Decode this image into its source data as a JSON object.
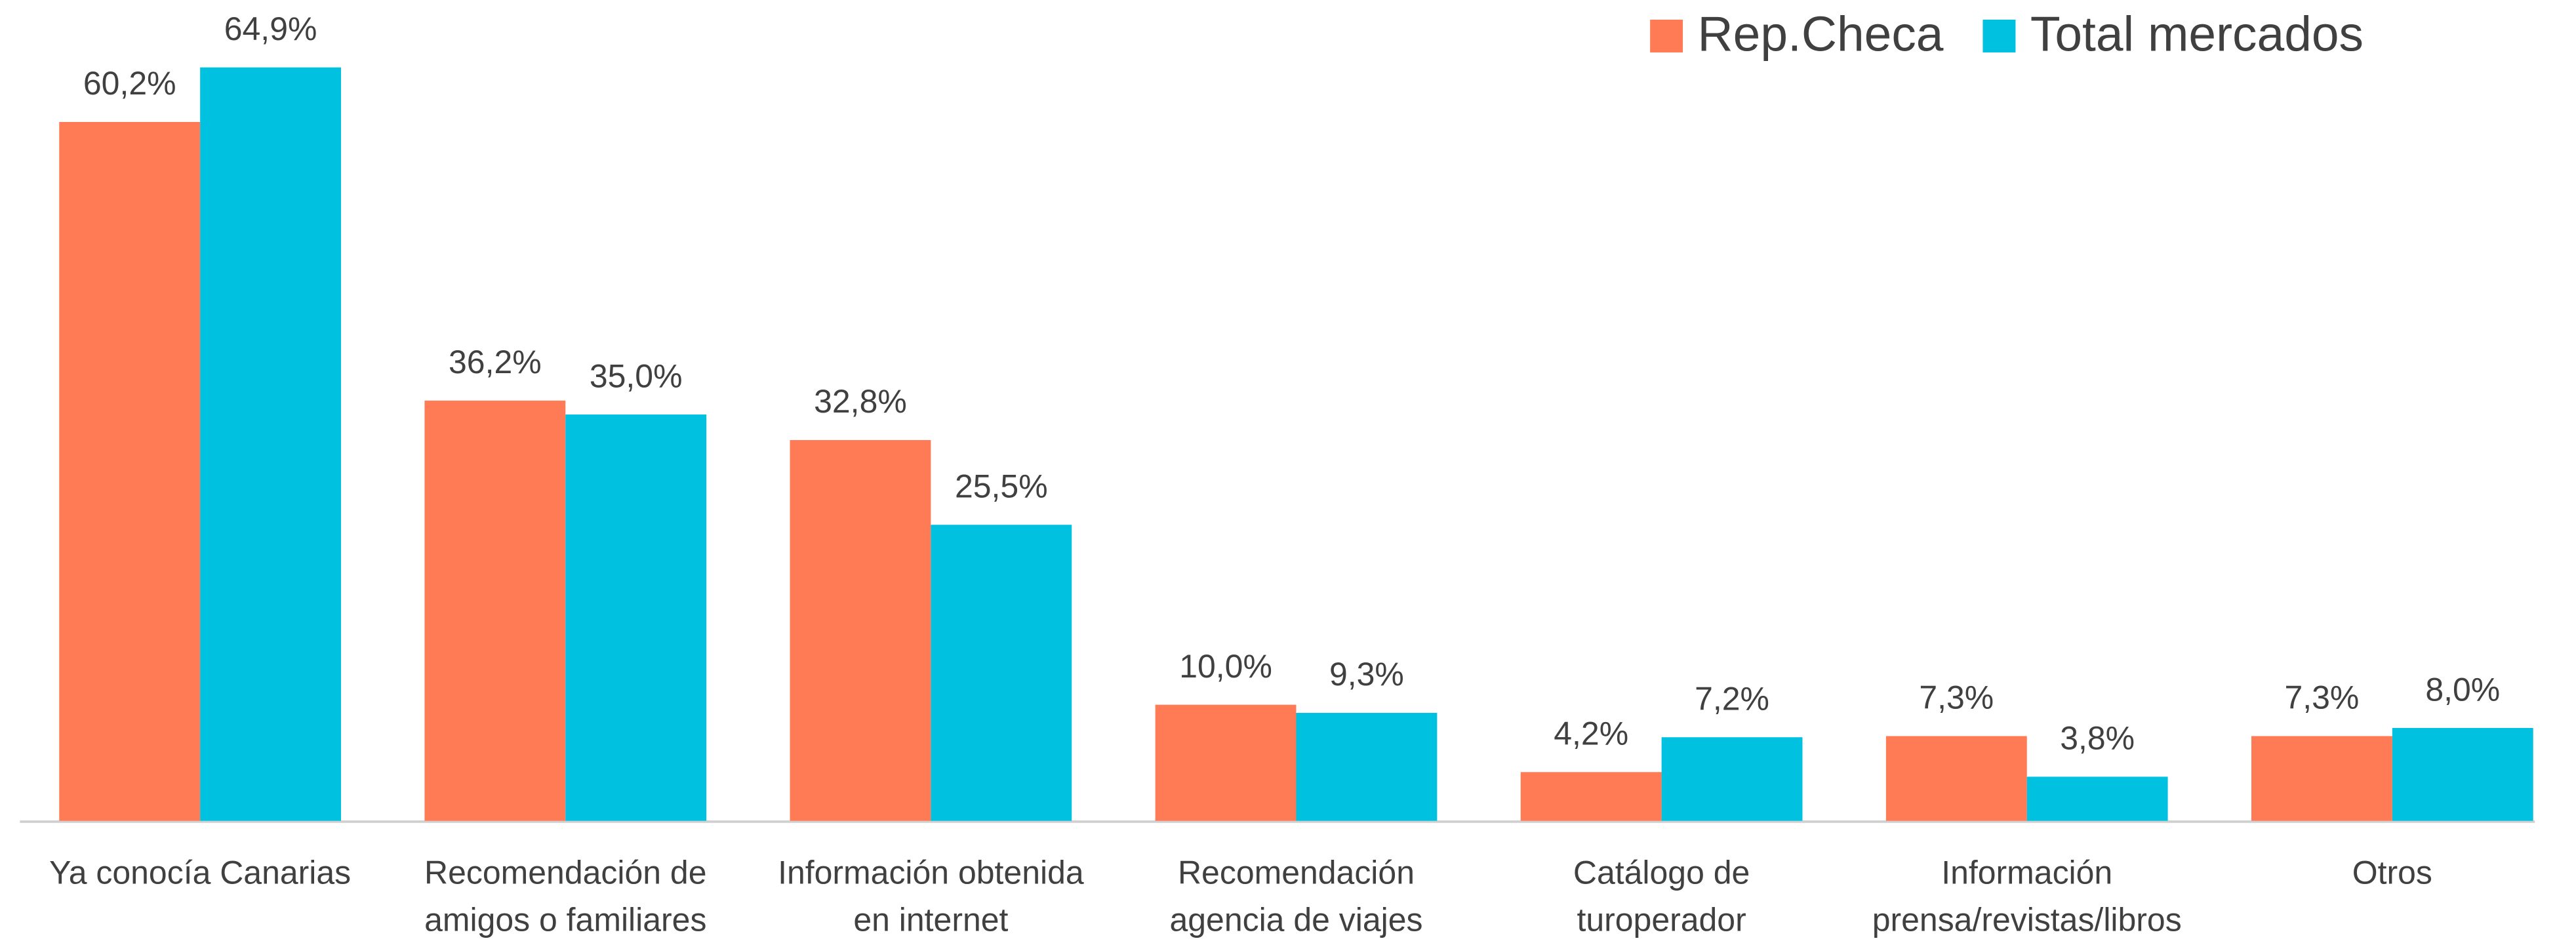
{
  "chart_data": {
    "type": "bar",
    "categories": [
      [
        "Ya conocía Canarias"
      ],
      [
        "Recomendación de",
        "amigos o familiares"
      ],
      [
        "Información obtenida",
        "en internet"
      ],
      [
        "Recomendación",
        "agencia de viajes"
      ],
      [
        "Catálogo de",
        "turoperador"
      ],
      [
        "Información",
        "prensa/revistas/libros"
      ],
      [
        "Otros"
      ]
    ],
    "series": [
      {
        "name": "Rep.Checa",
        "color": "#ff7b55",
        "values": [
          60.2,
          36.2,
          32.8,
          10.0,
          4.2,
          7.3,
          7.3
        ],
        "value_labels": [
          "60,2%",
          "36,2%",
          "32,8%",
          "10,0%",
          "4,2%",
          "7,3%",
          "7,3%"
        ]
      },
      {
        "name": "Total mercados",
        "color": "#00c2e0",
        "values": [
          64.9,
          35.0,
          25.5,
          9.3,
          7.2,
          3.8,
          8.0
        ],
        "value_labels": [
          "64,9%",
          "35,0%",
          "25,5%",
          "9,3%",
          "7,2%",
          "3,8%",
          "8,0%"
        ]
      }
    ],
    "ylim": [
      0,
      70
    ],
    "legend": "top-right"
  }
}
